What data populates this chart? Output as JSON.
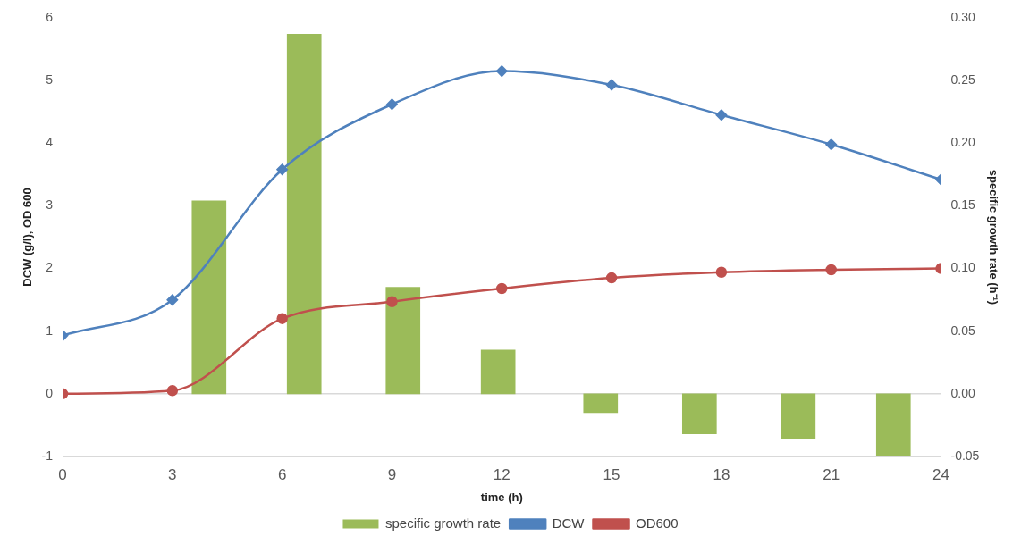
{
  "chart_data": {
    "type": "line",
    "xlabel": "time (h)",
    "ylabel": "DCW (g/l), OD 600",
    "y2label": "specific growth rate (h⁻¹)",
    "xlim": [
      0,
      24
    ],
    "xticks": [
      0,
      3,
      6,
      9,
      12,
      15,
      18,
      21,
      24
    ],
    "ylim": [
      -1,
      6
    ],
    "yticks": [
      -1,
      0,
      1,
      2,
      3,
      4,
      5,
      6
    ],
    "y2lim": [
      -0.05,
      0.3
    ],
    "y2ticks": [
      {
        "value": -0.05,
        "label": "-0.05"
      },
      {
        "value": 0,
        "label": "0.00"
      },
      {
        "value": 0.05,
        "label": "0.05"
      },
      {
        "value": 0.1,
        "label": "0.10"
      },
      {
        "value": 0.15,
        "label": "0.15"
      },
      {
        "value": 0.2,
        "label": "0.20"
      },
      {
        "value": 0.25,
        "label": "0.25"
      },
      {
        "value": 0.3,
        "label": "0.30"
      }
    ],
    "legend": "bottom",
    "grid": false,
    "ref_lines": [
      {
        "axis": "y",
        "value": 0,
        "color": "#d9d9d9"
      }
    ],
    "series": [
      {
        "name": "specific growth rate",
        "type": "bar",
        "axis": "y2",
        "color": "#9bbb59",
        "x": [
          4.0,
          6.6,
          9.3,
          11.9,
          14.7,
          17.4,
          20.1,
          22.7
        ],
        "values": [
          0.154,
          0.287,
          0.085,
          0.035,
          -0.015,
          -0.032,
          -0.036,
          -0.05
        ]
      },
      {
        "name": "DCW",
        "marker": "diamond",
        "color": "#4f81bd",
        "x": [
          0,
          3,
          6,
          9,
          12,
          15,
          18,
          21,
          24
        ],
        "values": [
          0.93,
          1.5,
          3.58,
          4.62,
          5.15,
          4.93,
          4.45,
          3.98,
          3.42
        ]
      },
      {
        "name": "OD600",
        "marker": "circle",
        "color": "#c0504d",
        "x": [
          0,
          3,
          6,
          9,
          12,
          15,
          18,
          21,
          24
        ],
        "values": [
          0,
          0.05,
          1.2,
          1.47,
          1.68,
          1.85,
          1.94,
          1.98,
          2.0
        ]
      }
    ]
  }
}
